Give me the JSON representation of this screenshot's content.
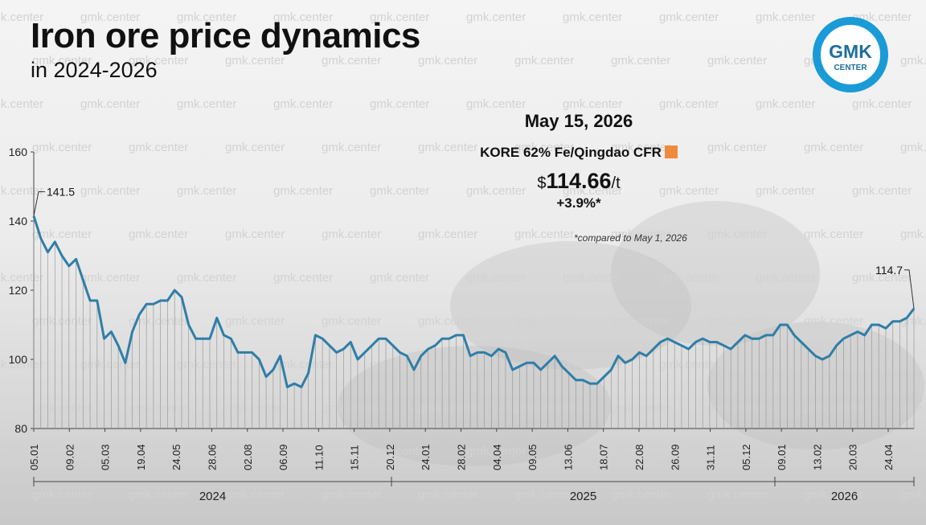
{
  "header": {
    "title": "Iron ore price dynamics",
    "subtitle": "in 2024-2026",
    "logo_top": "GMK",
    "logo_bottom": "CENTER",
    "watermark": "gmk.center"
  },
  "info": {
    "date": "May 15, 2026",
    "index": "KORE 62% Fe/Qingdao CFR",
    "price_prefix": "$",
    "price": "114.66",
    "price_unit": "/t",
    "change": "+3.9%*",
    "note": "*compared to May 1, 2026"
  },
  "colors": {
    "line": "#2f7ea7",
    "accent": "#f08a3c",
    "logo_ring": "#1a9bd7"
  },
  "chart_data": {
    "type": "line",
    "ylim": [
      80,
      160
    ],
    "yticks": [
      "80",
      "100",
      "120",
      "140",
      "160"
    ],
    "x_tick_labels": [
      "05.01",
      "09.02",
      "05.03",
      "19.04",
      "24.05",
      "28.06",
      "02.08",
      "06.09",
      "11.10",
      "15.11",
      "20.12",
      "24.01",
      "28.02",
      "04.04",
      "09.05",
      "13.06",
      "18.07",
      "22.08",
      "26.09",
      "31.11",
      "05.12",
      "09.01",
      "13.02",
      "20.03",
      "24.04"
    ],
    "years": [
      "2024",
      "2025",
      "2026"
    ],
    "annotations": {
      "first": "141.5",
      "last": "114.7"
    },
    "values": [
      141.5,
      135,
      131,
      134,
      130,
      127,
      129,
      123,
      117,
      117,
      106,
      108,
      104,
      99,
      108,
      113,
      116,
      116,
      117,
      117,
      120,
      118,
      110,
      106,
      106,
      106,
      112,
      107,
      106,
      102,
      102,
      102,
      100,
      95,
      97,
      101,
      92,
      93,
      92,
      96,
      107,
      106,
      104,
      102,
      103,
      105,
      100,
      102,
      104,
      106,
      106,
      104,
      102,
      101,
      97,
      101,
      103,
      104,
      106,
      106,
      107,
      107,
      101,
      102,
      102,
      101,
      103,
      102,
      97,
      98,
      99,
      99,
      97,
      99,
      101,
      98,
      96,
      94,
      94,
      93,
      93,
      95,
      97,
      101,
      99,
      100,
      102,
      101,
      103,
      105,
      106,
      105,
      104,
      103,
      105,
      106,
      105,
      105,
      104,
      103,
      105,
      107,
      106,
      106,
      107,
      107,
      110,
      110,
      107,
      105,
      103,
      101,
      100,
      101,
      104,
      106,
      107,
      108,
      107,
      110,
      110,
      109,
      111,
      111,
      112,
      114.7
    ]
  }
}
